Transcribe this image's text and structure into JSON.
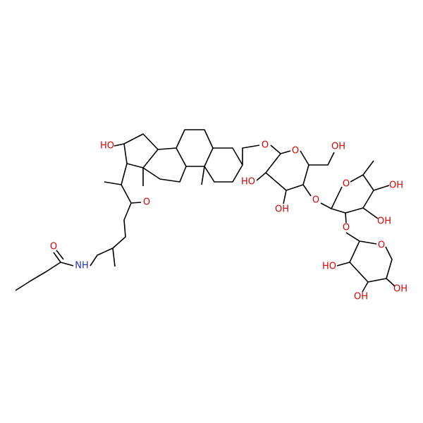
{
  "atoms": [
    {
      "label": "O"
    },
    {
      "label": "NH"
    },
    {
      "label": "O"
    },
    {
      "label": "HO"
    },
    {
      "label": "O"
    },
    {
      "label": "O"
    },
    {
      "label": "OH"
    },
    {
      "label": "HO"
    },
    {
      "label": "OH"
    },
    {
      "label": "O"
    },
    {
      "label": "O"
    },
    {
      "label": "OH"
    },
    {
      "label": "OH"
    },
    {
      "label": "O"
    },
    {
      "label": "O"
    },
    {
      "label": "HO"
    },
    {
      "label": "OH"
    },
    {
      "label": "OH"
    }
  ]
}
